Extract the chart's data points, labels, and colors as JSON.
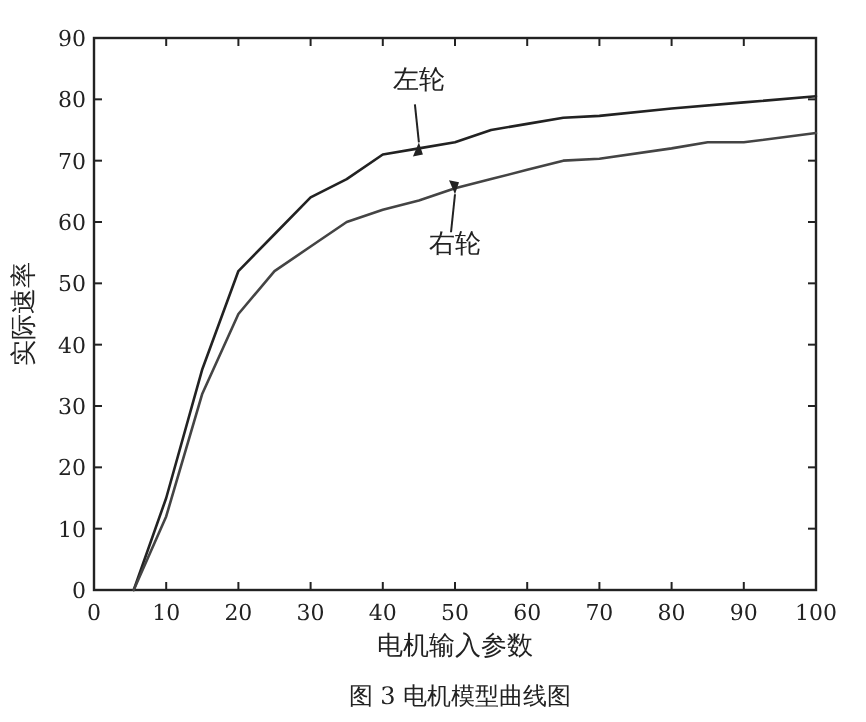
{
  "chart_data": {
    "type": "line",
    "xlabel": "电机输入参数",
    "ylabel": "实际速率",
    "annotations": [
      "图 3 电机模型曲线图"
    ],
    "xlim": [
      0,
      100
    ],
    "ylim": [
      0,
      90
    ],
    "xticks": [
      0,
      10,
      20,
      30,
      40,
      50,
      60,
      70,
      80,
      90,
      100
    ],
    "yticks": [
      0,
      10,
      20,
      30,
      40,
      50,
      60,
      70,
      80,
      90
    ],
    "grid": false,
    "legend": "top",
    "marker": "none",
    "line_style": "solid",
    "series": [
      {
        "name": "左轮",
        "color": "#222222",
        "x": [
          5.5,
          10,
          15,
          20,
          25,
          30,
          35,
          40,
          45,
          50,
          55,
          60,
          65,
          70,
          80,
          90,
          100
        ],
        "values": [
          0,
          15,
          36,
          52,
          58,
          64,
          67,
          71,
          72,
          73,
          75,
          76,
          77,
          77.3,
          78.5,
          79.5,
          80.5
        ]
      },
      {
        "name": "右轮",
        "color": "#444444",
        "x": [
          5.5,
          10,
          15,
          20,
          25,
          30,
          35,
          40,
          45,
          50,
          55,
          60,
          65,
          70,
          80,
          85,
          90,
          100
        ],
        "values": [
          0,
          12,
          32,
          45,
          52,
          56,
          60,
          62,
          63.5,
          65.5,
          67,
          68.5,
          70,
          70.3,
          72,
          73,
          73,
          74.5
        ]
      }
    ]
  }
}
